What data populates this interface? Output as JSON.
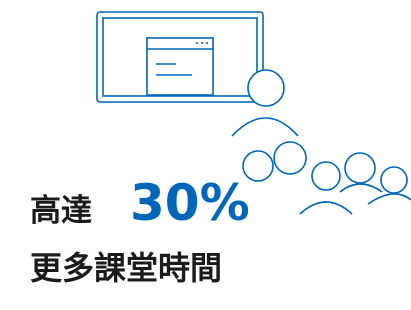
{
  "headline": {
    "prefix": "高達",
    "figure": "30%"
  },
  "subtitle": "更多課堂時間"
}
